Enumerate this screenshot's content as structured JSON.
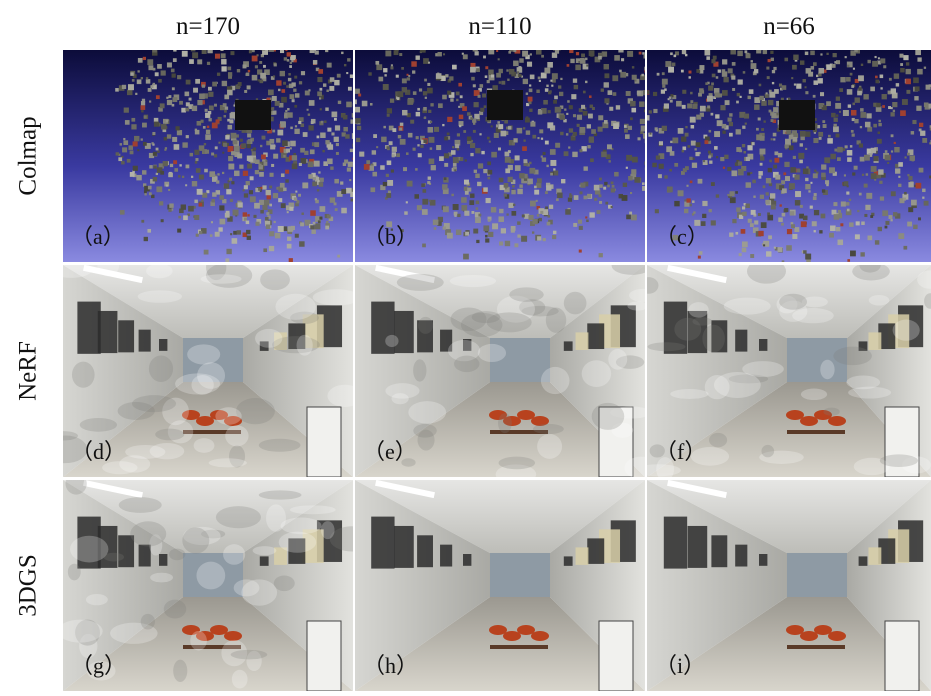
{
  "columns": [
    "n=170",
    "n=110",
    "n=66"
  ],
  "rows": [
    {
      "label": "Colmap",
      "panels": [
        "（a）",
        "（b）",
        "（c）"
      ]
    },
    {
      "label": "NeRF",
      "panels": [
        "（d）",
        "（e）",
        "（f）"
      ]
    },
    {
      "label": "3DGS",
      "panels": [
        "（g）",
        "（h）",
        "（i）"
      ]
    }
  ]
}
